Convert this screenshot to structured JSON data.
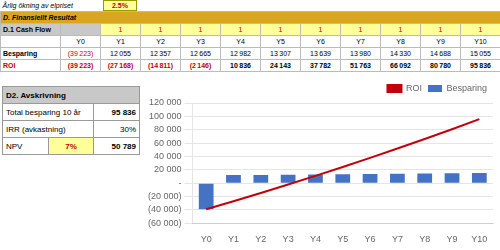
{
  "chart_data": {
    "type": "bar",
    "categories": [
      "Y0",
      "Y1",
      "Y2",
      "Y3",
      "Y4",
      "Y5",
      "Y6",
      "Y7",
      "Y8",
      "Y9",
      "Y10"
    ],
    "series": [
      {
        "name": "Besparing",
        "type": "bar",
        "color": "#4472C4",
        "values": [
          -39223,
          12055,
          12357,
          12665,
          12982,
          13307,
          13639,
          13980,
          14330,
          14688,
          15055
        ],
        "value_labels": [
          "(39 223)",
          "12 055",
          "12 357",
          "12 665",
          "12 982",
          "13 307",
          "13 639",
          "13 980",
          "14 330",
          "14 688",
          "15 055"
        ]
      },
      {
        "name": "ROI",
        "type": "line",
        "color": "#C0000C",
        "values": [
          -39223,
          -27168,
          -14811,
          -2146,
          10836,
          24143,
          37782,
          51763,
          66092,
          80780,
          95836
        ],
        "value_labels": [
          "(39 223)",
          "(27 168)",
          "(14 811)",
          "(2 146)",
          "10 836",
          "24 143",
          "37 782",
          "51 763",
          "66 092",
          "80 780",
          "95 836"
        ]
      }
    ],
    "ylim": [
      -60000,
      120000
    ],
    "yticks": [
      {
        "value": -60000,
        "label": "(60 000)"
      },
      {
        "value": -40000,
        "label": "(40 000)"
      },
      {
        "value": -20000,
        "label": "(20 000)"
      },
      {
        "value": 0,
        "label": "-"
      },
      {
        "value": 20000,
        "label": "20 000"
      },
      {
        "value": 40000,
        "label": "40 000"
      },
      {
        "value": 60000,
        "label": "60 000"
      },
      {
        "value": 80000,
        "label": "80 000"
      },
      {
        "value": 100000,
        "label": "100 000"
      },
      {
        "value": 120000,
        "label": "120 000"
      }
    ],
    "grid": true,
    "legend": "upper right",
    "annotations": [
      "Årlig ökning av elpriset",
      "2.5%",
      "D. Finansiellt Resultat",
      "D.1 Cash Flow",
      [
        null,
        "1",
        "1",
        "1",
        "1",
        "1",
        "1",
        "1",
        "1",
        "1",
        "1"
      ],
      "D2. Avskrivning",
      "Total besparing 10 år",
      "95 836",
      "IRR (avkastning)",
      "30%",
      "NPV",
      "7%",
      "50 789"
    ]
  }
}
